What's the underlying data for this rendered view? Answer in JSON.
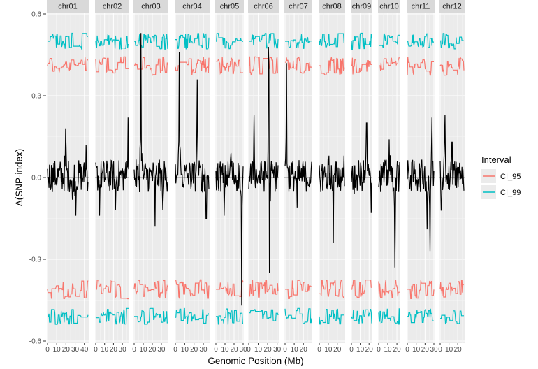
{
  "chart_data": {
    "type": "line",
    "title": "",
    "xlabel": "Genomic Position (Mb)",
    "ylabel": "Δ(SNP-index)",
    "ylim": [
      -0.6,
      0.6
    ],
    "y_ticks": [
      0.6,
      0.3,
      0.0,
      -0.3,
      -0.6
    ],
    "y_tick_labels": [
      "0.6",
      "0.3",
      "0.0",
      "-0.3",
      "-0.6"
    ],
    "grid": true,
    "facet_by": "chromosome",
    "legend": {
      "title": "Interval",
      "position": "right",
      "entries": [
        {
          "label": "CI_95",
          "color": "#F8766D"
        },
        {
          "label": "CI_99",
          "color": "#00BFC4"
        }
      ]
    },
    "series_colors": {
      "delta_snp": "#000000",
      "CI_95": "#F8766D",
      "CI_99": "#00BFC4",
      "zero_line": "#8c8c8c"
    },
    "approx_levels": {
      "CI_95_upper": 0.41,
      "CI_95_lower": -0.41,
      "CI_99_upper": 0.5,
      "CI_99_lower": -0.51
    },
    "facets": [
      {
        "name": "chr01",
        "x_max_mb": 44,
        "x_ticks": [
          0,
          10,
          20,
          30,
          40
        ],
        "x_tick_labels": [
          "0",
          "10",
          "20",
          "30",
          "40"
        ],
        "px": [
          67,
          127
        ],
        "delta_features": [
          {
            "pos": 0.45,
            "val": 0.18
          },
          {
            "pos": 0.62,
            "val": -0.08
          },
          {
            "pos": 0.7,
            "val": -0.14
          },
          {
            "pos": 0.95,
            "val": 0.12
          }
        ],
        "delta_range": [
          -0.14,
          0.18
        ]
      },
      {
        "name": "chr02",
        "x_max_mb": 37,
        "x_ticks": [
          0,
          10,
          20,
          30
        ],
        "x_tick_labels": [
          "0",
          "10",
          "20",
          "30"
        ],
        "px": [
          136,
          185
        ],
        "delta_features": [
          {
            "pos": 0.12,
            "val": -0.14
          },
          {
            "pos": 0.6,
            "val": -0.12
          },
          {
            "pos": 0.98,
            "val": 0.22
          }
        ],
        "delta_range": [
          -0.14,
          0.22
        ]
      },
      {
        "name": "chr03",
        "x_max_mb": 37,
        "x_ticks": [
          0,
          10,
          20,
          30
        ],
        "x_tick_labels": [
          "0",
          "10",
          "20",
          "30"
        ],
        "px": [
          191,
          241
        ],
        "delta_features": [
          {
            "pos": 0.2,
            "val": 0.53
          },
          {
            "pos": 0.62,
            "val": -0.18
          },
          {
            "pos": 0.85,
            "val": -0.12
          }
        ],
        "delta_range": [
          -0.18,
          0.53
        ]
      },
      {
        "name": "chr04",
        "x_max_mb": 36,
        "x_ticks": [
          0,
          10,
          20,
          30
        ],
        "x_tick_labels": [
          "0",
          "10",
          "20",
          "30"
        ],
        "px": [
          250,
          300
        ],
        "delta_features": [
          {
            "pos": 0.12,
            "val": 0.46
          },
          {
            "pos": 0.65,
            "val": 0.36
          },
          {
            "pos": 0.92,
            "val": -0.15
          }
        ],
        "delta_range": [
          -0.15,
          0.46
        ]
      },
      {
        "name": "chr05",
        "x_max_mb": 30,
        "x_ticks": [
          0,
          10,
          20,
          30
        ],
        "x_tick_labels": [
          "0",
          "10",
          "20",
          "30"
        ],
        "px": [
          308,
          349
        ],
        "delta_features": [
          {
            "pos": 0.3,
            "val": -0.14
          },
          {
            "pos": 0.55,
            "val": 0.09
          },
          {
            "pos": 0.95,
            "val": -0.47
          }
        ],
        "delta_range": [
          -0.47,
          0.09
        ]
      },
      {
        "name": "chr06",
        "x_max_mb": 31,
        "x_ticks": [
          0,
          10,
          20,
          30
        ],
        "x_tick_labels": [
          "0",
          "10",
          "20",
          "30"
        ],
        "px": [
          355,
          399
        ],
        "delta_features": [
          {
            "pos": 0.18,
            "val": 0.23
          },
          {
            "pos": 0.68,
            "val": 0.53
          },
          {
            "pos": 0.7,
            "val": -0.35
          }
        ],
        "delta_range": [
          -0.35,
          0.53
        ]
      },
      {
        "name": "chr07",
        "x_max_mb": 29,
        "x_ticks": [
          0,
          10,
          20
        ],
        "x_tick_labels": [
          "0",
          "10",
          "20"
        ],
        "px": [
          407,
          447
        ],
        "delta_features": [
          {
            "pos": 0.05,
            "val": 0.42
          },
          {
            "pos": 0.45,
            "val": -0.11
          }
        ],
        "delta_range": [
          -0.11,
          0.42
        ]
      },
      {
        "name": "chr08",
        "x_max_mb": 28,
        "x_ticks": [
          0,
          10,
          20
        ],
        "x_tick_labels": [
          "0",
          "10",
          "20"
        ],
        "px": [
          456,
          494
        ],
        "delta_features": [
          {
            "pos": 0.38,
            "val": 0.08
          },
          {
            "pos": 0.55,
            "val": -0.24
          },
          {
            "pos": 0.98,
            "val": 0.08
          }
        ],
        "delta_range": [
          -0.24,
          0.08
        ]
      },
      {
        "name": "chr09",
        "x_max_mb": 23,
        "x_ticks": [
          0,
          10,
          20
        ],
        "x_tick_labels": [
          "0",
          "10",
          "20"
        ],
        "px": [
          502,
          533
        ],
        "delta_features": [
          {
            "pos": 0.15,
            "val": -0.06
          },
          {
            "pos": 0.75,
            "val": 0.2
          },
          {
            "pos": 0.98,
            "val": -0.13
          }
        ],
        "delta_range": [
          -0.13,
          0.2
        ]
      },
      {
        "name": "chr10",
        "x_max_mb": 23,
        "x_ticks": [
          0,
          10,
          20
        ],
        "x_tick_labels": [
          "0",
          "10",
          "20"
        ],
        "px": [
          541,
          573
        ],
        "delta_features": [
          {
            "pos": 0.5,
            "val": 0.14
          },
          {
            "pos": 0.78,
            "val": -0.33
          }
        ],
        "delta_range": [
          -0.33,
          0.14
        ]
      },
      {
        "name": "chr11",
        "x_max_mb": 30,
        "x_ticks": [
          0,
          10,
          20,
          30
        ],
        "x_tick_labels": [
          "0",
          "10",
          "20",
          "30"
        ],
        "px": [
          582,
          622
        ],
        "delta_features": [
          {
            "pos": 0.75,
            "val": -0.19
          },
          {
            "pos": 0.85,
            "val": -0.27
          },
          {
            "pos": 0.93,
            "val": 0.22
          }
        ],
        "delta_range": [
          -0.27,
          0.22
        ]
      },
      {
        "name": "chr12",
        "x_max_mb": 27,
        "x_ticks": [
          0,
          10,
          20
        ],
        "x_tick_labels": [
          "0",
          "10",
          "20"
        ],
        "px": [
          629,
          665
        ],
        "delta_features": [
          {
            "pos": 0.05,
            "val": -0.12
          },
          {
            "pos": 0.2,
            "val": 0.23
          },
          {
            "pos": 0.5,
            "val": 0.13
          }
        ],
        "delta_range": [
          -0.12,
          0.23
        ]
      }
    ]
  }
}
